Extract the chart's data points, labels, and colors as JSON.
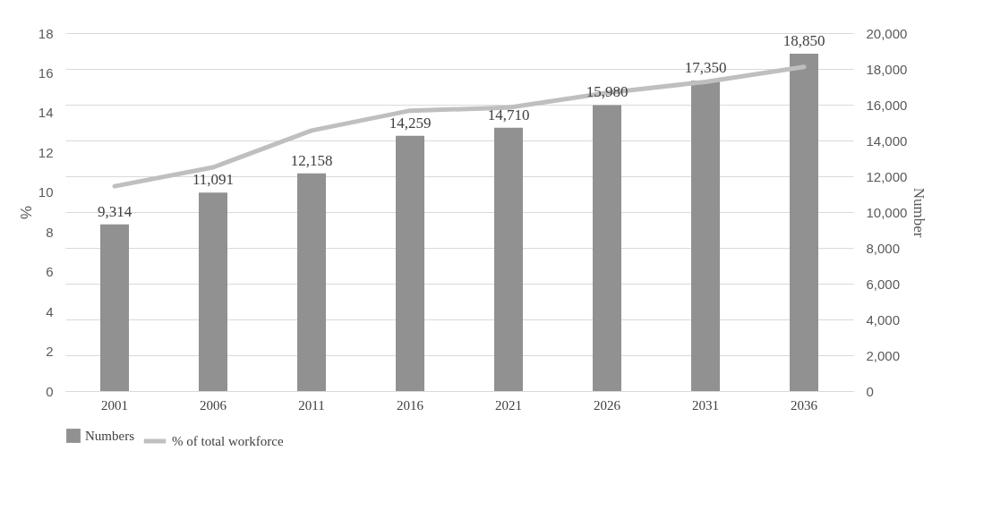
{
  "chart_data": {
    "type": "bar",
    "categories": [
      "2001",
      "2006",
      "2011",
      "2016",
      "2021",
      "2026",
      "2031",
      "2036"
    ],
    "series": [
      {
        "name": "Numbers",
        "type": "bar",
        "axis": "y2",
        "color": "#919191",
        "values": [
          9314,
          11091,
          12158,
          14259,
          14710,
          15980,
          17350,
          18850
        ]
      },
      {
        "name": "% of total workforce",
        "type": "line",
        "color": "#bfbfbf",
        "values": [
          10.3,
          11.25,
          13.1,
          14.1,
          14.25,
          15.0,
          15.55,
          16.3
        ]
      }
    ],
    "ylabel": "%",
    "y2label": "Number",
    "ylim": [
      0,
      18
    ],
    "yticks": [
      0,
      2,
      4,
      6,
      8,
      10,
      12,
      14,
      16,
      18
    ],
    "y2lim": [
      0,
      20000
    ],
    "y2ticks": [
      0,
      {
        "value": 2000,
        "label": "2,000"
      },
      {
        "value": 4000,
        "label": "4,000"
      },
      {
        "value": 6000,
        "label": "6,000"
      },
      {
        "value": 8000,
        "label": "8,000"
      },
      {
        "value": 10000,
        "label": "10,000"
      },
      {
        "value": 12000,
        "label": "12,000"
      },
      {
        "value": 14000,
        "label": "14,000"
      },
      {
        "value": 16000,
        "label": "16,000"
      },
      {
        "value": 18000,
        "label": "18,000"
      },
      {
        "value": 20000,
        "label": "20,000"
      }
    ],
    "value_labels": [
      "9,314",
      "11,091",
      "12,158",
      "14,259",
      "14,710",
      "15,980",
      "17,350",
      "18,850"
    ],
    "grid": true,
    "legend": "bottom"
  }
}
